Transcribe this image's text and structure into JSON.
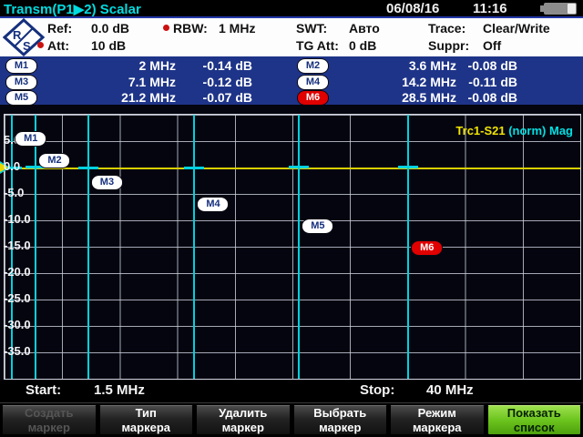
{
  "titlebar": {
    "title": "Transm(P1▶2) Scalar",
    "date": "06/08/16",
    "time": "11:16"
  },
  "header": {
    "items_row1": [
      {
        "dot": false,
        "label": "Ref:",
        "value": "0.0 dB"
      },
      {
        "dot": true,
        "label": "RBW:",
        "value": "1 MHz"
      },
      {
        "dot": false,
        "label": "SWT:",
        "value": "Авто"
      },
      {
        "dot": false,
        "label": "Trace:",
        "value": "Clear/Write"
      }
    ],
    "items_row2": [
      {
        "dot": true,
        "label": "Att:",
        "value": "10 dB"
      },
      {
        "dot": false,
        "label": "TG Att:",
        "value": "0 dB"
      },
      {
        "dot": false,
        "label": "Suppr:",
        "value": "Off"
      }
    ],
    "logo": "rohde-schwarz-logo"
  },
  "markers": [
    {
      "id": "M1",
      "freq_mhz": 2,
      "freq": "2 MHz",
      "level_db": -0.14,
      "level": "-0.14 dB",
      "active": false
    },
    {
      "id": "M2",
      "freq_mhz": 3.6,
      "freq": "3.6 MHz",
      "level_db": -0.08,
      "level": "-0.08 dB",
      "active": false
    },
    {
      "id": "M3",
      "freq_mhz": 7.1,
      "freq": "7.1 MHz",
      "level_db": -0.12,
      "level": "-0.12 dB",
      "active": false
    },
    {
      "id": "M4",
      "freq_mhz": 14.2,
      "freq": "14.2 MHz",
      "level_db": -0.11,
      "level": "-0.11 dB",
      "active": false
    },
    {
      "id": "M5",
      "freq_mhz": 21.2,
      "freq": "21.2 MHz",
      "level_db": -0.07,
      "level": "-0.07 dB",
      "active": false
    },
    {
      "id": "M6",
      "freq_mhz": 28.5,
      "freq": "28.5 MHz",
      "level_db": -0.08,
      "level": "-0.08 dB",
      "active": true
    }
  ],
  "chart_data": {
    "type": "line",
    "title_trace": "Trc1-S21",
    "title_mode": " (norm) Mag",
    "x_start_mhz": 1.5,
    "x_stop_mhz": 40,
    "y_top_db": 10,
    "y_bottom_db": -40,
    "y_div_db": 5,
    "y_tick_labels": [
      "5.0",
      "0.0",
      "-5.0",
      "-10.0",
      "-15.0",
      "-20.0",
      "-25.0",
      "-30.0",
      "-35.0"
    ],
    "grid": true,
    "series": [
      {
        "name": "Trc1-S21 (norm) Mag",
        "color": "#d8d000",
        "points": [
          {
            "x_mhz": 2,
            "y_db": -0.14
          },
          {
            "x_mhz": 3.6,
            "y_db": -0.08
          },
          {
            "x_mhz": 7.1,
            "y_db": -0.12
          },
          {
            "x_mhz": 14.2,
            "y_db": -0.11
          },
          {
            "x_mhz": 21.2,
            "y_db": -0.07
          },
          {
            "x_mhz": 28.5,
            "y_db": -0.08
          }
        ]
      }
    ],
    "start_label": "Start:",
    "start_value": "1.5 MHz",
    "stop_label": "Stop:",
    "stop_value": "40 MHz"
  },
  "softkeys": [
    {
      "lines": [
        "Создать",
        "маркер"
      ],
      "enabled": false,
      "active": false
    },
    {
      "lines": [
        "Тип",
        "маркера"
      ],
      "enabled": true,
      "active": false
    },
    {
      "lines": [
        "Удалить",
        "маркер"
      ],
      "enabled": true,
      "active": false
    },
    {
      "lines": [
        "Выбрать",
        "маркер"
      ],
      "enabled": true,
      "active": false
    },
    {
      "lines": [
        "Режим",
        "маркера"
      ],
      "enabled": true,
      "active": false
    },
    {
      "lines": [
        "Показать",
        "список"
      ],
      "enabled": true,
      "active": true
    }
  ],
  "colors": {
    "accent_cyan": "#00dce0",
    "trace_yellow": "#d8d000",
    "marker_active_red": "#e00000",
    "table_navy": "#1e3488",
    "softkey_green": "#6cc41e"
  }
}
